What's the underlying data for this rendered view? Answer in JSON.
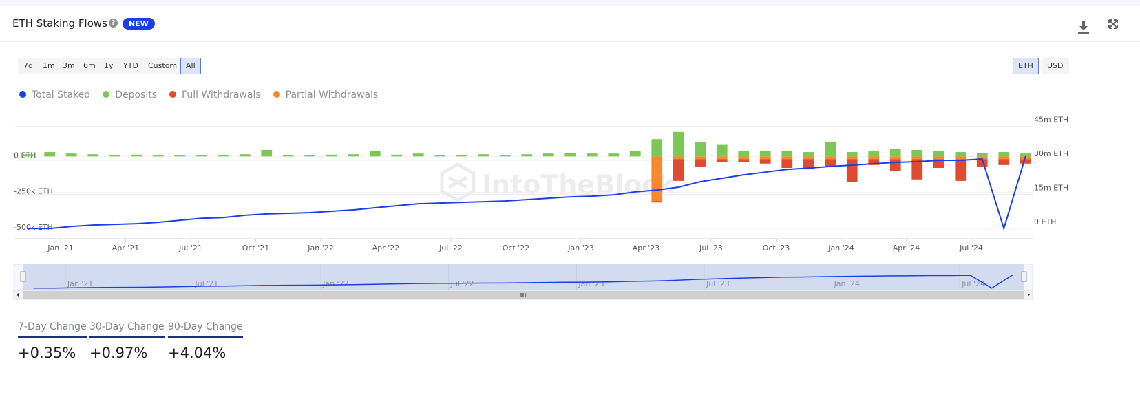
{
  "header": {
    "title": "ETH Staking Flows",
    "badge": "NEW"
  },
  "ranges": [
    "7d",
    "1m",
    "3m",
    "6m",
    "1y",
    "YTD",
    "Custom",
    "All"
  ],
  "active_range": 7,
  "units": [
    "ETH",
    "USD"
  ],
  "active_unit": 0,
  "watermark": "IntoTheBlock",
  "chart_data": {
    "type": "bar",
    "categories": [
      null,
      null,
      "Jan '21",
      null,
      null,
      "Apr '21",
      null,
      null,
      "Jul '21",
      null,
      null,
      "Oct '21",
      null,
      null,
      "Jan '22",
      null,
      null,
      "Apr '22",
      null,
      null,
      "Jul '22",
      null,
      null,
      "Oct '22",
      null,
      null,
      "Jan '23",
      null,
      null,
      "Apr '23",
      null,
      null,
      "Jul '23",
      null,
      null,
      "Oct '23",
      null,
      null,
      "Jan '24",
      null,
      null,
      "Apr '24",
      null,
      null,
      "Jul '24",
      null,
      null
    ],
    "series": [
      {
        "name": "Total Staked",
        "type": "line",
        "axis": "y2",
        "color": "#1a3ee8",
        "values": [
          0,
          0,
          900000,
          1500000,
          1800000,
          2100000,
          2700000,
          3600000,
          4500000,
          4800000,
          5800000,
          6400000,
          6700000,
          7000000,
          7600000,
          8200000,
          9100000,
          10000000,
          10900000,
          11200000,
          11500000,
          11800000,
          12100000,
          12700000,
          13300000,
          13900000,
          14200000,
          14800000,
          16100000,
          16900000,
          18200000,
          20600000,
          22100000,
          23600000,
          24800000,
          26000000,
          26600000,
          27300000,
          27900000,
          28500000,
          29100000,
          29400000,
          30000000,
          30000000,
          30600000,
          0,
          31800000
        ]
      },
      {
        "name": "Deposits",
        "type": "bar",
        "color": "#7dc855",
        "values": [
          15000,
          30000,
          20000,
          15000,
          10000,
          12000,
          8000,
          10000,
          8000,
          10000,
          15000,
          45000,
          10000,
          8000,
          12000,
          15000,
          40000,
          12000,
          20000,
          8000,
          10000,
          15000,
          10000,
          15000,
          20000,
          25000,
          20000,
          20000,
          40000,
          120000,
          170000,
          100000,
          80000,
          40000,
          40000,
          40000,
          30000,
          100000,
          30000,
          40000,
          50000,
          45000,
          40000,
          30000,
          25000,
          30000,
          20000
        ]
      },
      {
        "name": "Full Withdrawals",
        "type": "bar",
        "color": "#e04a2f",
        "values": [
          0,
          0,
          0,
          0,
          0,
          0,
          0,
          0,
          0,
          0,
          0,
          0,
          0,
          0,
          0,
          0,
          0,
          0,
          0,
          0,
          0,
          0,
          0,
          0,
          0,
          0,
          0,
          0,
          0,
          -10000,
          -150000,
          -50000,
          -20000,
          -20000,
          -30000,
          -60000,
          -70000,
          -50000,
          -160000,
          -40000,
          -80000,
          -140000,
          -60000,
          -150000,
          -50000,
          -40000,
          -30000
        ]
      },
      {
        "name": "Partial Withdrawals",
        "type": "bar",
        "color": "#f5892b",
        "values": [
          0,
          0,
          0,
          0,
          0,
          0,
          0,
          0,
          0,
          0,
          0,
          0,
          0,
          0,
          0,
          0,
          0,
          0,
          0,
          0,
          0,
          0,
          0,
          0,
          0,
          0,
          0,
          0,
          0,
          -310000,
          -20000,
          -20000,
          -20000,
          -20000,
          -20000,
          -20000,
          -20000,
          -20000,
          -20000,
          -20000,
          -20000,
          -20000,
          -20000,
          -20000,
          -20000,
          -20000,
          -20000
        ]
      }
    ],
    "ylim": [
      -534000,
      298000
    ],
    "yticks": [
      {
        "value": -500000,
        "label": "-500k ETH"
      },
      {
        "value": -250000,
        "label": "-250k ETH"
      },
      {
        "value": 0,
        "label": "0 ETH"
      }
    ],
    "y2lim": [
      -2100000,
      50600000
    ],
    "y2ticks": [
      {
        "value": 0,
        "label": "0 ETH"
      },
      {
        "value": 15000000,
        "label": "15m ETH"
      },
      {
        "value": 30000000,
        "label": "30m ETH"
      },
      {
        "value": 45000000,
        "label": "45m ETH"
      }
    ],
    "grid": true
  },
  "stats": [
    {
      "label": "7-Day Change",
      "value": "+0.35%"
    },
    {
      "label": "30-Day Change",
      "value": "+0.97%"
    },
    {
      "label": "90-Day Change",
      "value": "+4.04%"
    }
  ]
}
